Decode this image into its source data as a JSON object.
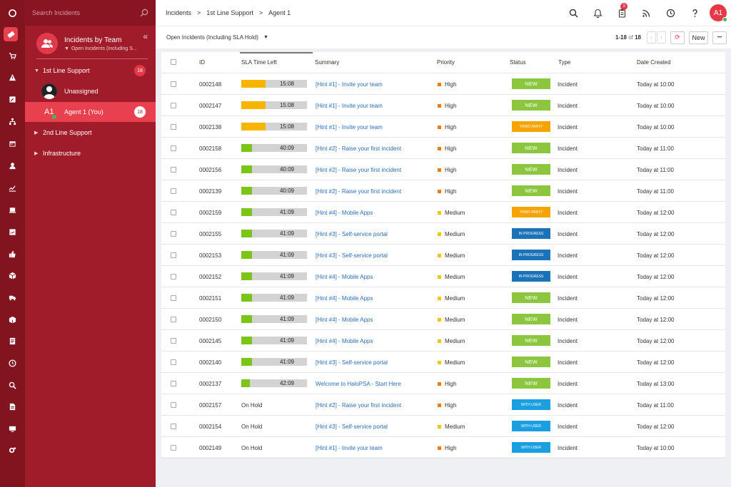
{
  "sidebar": {
    "search_placeholder": "Search Incidents",
    "team_title": "Incidents by Team",
    "team_filter": "Open Incidents (Including S...",
    "groups": [
      {
        "label": "1st Line Support",
        "count": "18"
      },
      {
        "label": "2nd Line Support",
        "count": ""
      },
      {
        "label": "Infrastructure",
        "count": ""
      }
    ],
    "unassigned_label": "Unassigned",
    "agent_label": "Agent 1 (You)",
    "agent_initials": "A1",
    "agent_count": "18"
  },
  "breadcrumb": [
    "Incidents",
    ">",
    "1st Line Support",
    ">",
    "Agent 1"
  ],
  "topbar": {
    "notification_count": "3",
    "user_initials": "A1"
  },
  "toolbar": {
    "filter_label": "Open Incidents (Including SLA Hold)",
    "pager_range": "1-18",
    "pager_of": "of",
    "pager_total": "18",
    "new_label": "New",
    "more_label": "•••"
  },
  "columns": {
    "id": "ID",
    "sla": "SLA Time Left",
    "summary": "Summary",
    "priority": "Priority",
    "status": "Status",
    "type": "Type",
    "date": "Date Created"
  },
  "colors": {
    "brand": "#a01c2a",
    "priority_high": "#f07d00",
    "priority_medium": "#f3c700",
    "sla_orange": "#f7b500",
    "sla_green": "#7cc417",
    "status_new": "#8cc63f",
    "status_third_party": "#f7a400",
    "status_in_progress": "#1a72b8",
    "status_with_user": "#1aa0e0"
  },
  "rows": [
    {
      "id": "0002148",
      "sla": "15:08",
      "sla_pct": 0.37,
      "sla_color": "orange",
      "summary": "[Hint #1] - Invite your team",
      "priority": "High",
      "status": "NEW",
      "type": "Incident",
      "date": "Today at 10:00"
    },
    {
      "id": "0002147",
      "sla": "15:08",
      "sla_pct": 0.37,
      "sla_color": "orange",
      "summary": "[Hint #1] - Invite your team",
      "priority": "High",
      "status": "NEW",
      "type": "Incident",
      "date": "Today at 10:00"
    },
    {
      "id": "0002138",
      "sla": "15:08",
      "sla_pct": 0.37,
      "sla_color": "orange",
      "summary": "[Hint #1] - Invite your team",
      "priority": "High",
      "status": "THIRD PARTY",
      "type": "Incident",
      "date": "Today at 10:00"
    },
    {
      "id": "0002158",
      "sla": "40:09",
      "sla_pct": 0.16,
      "sla_color": "green",
      "summary": "[Hint #2] - Raise your first incident",
      "priority": "High",
      "status": "NEW",
      "type": "Incident",
      "date": "Today at 11:00"
    },
    {
      "id": "0002156",
      "sla": "40:09",
      "sla_pct": 0.16,
      "sla_color": "green",
      "summary": "[Hint #2] - Raise your first incident",
      "priority": "High",
      "status": "NEW",
      "type": "Incident",
      "date": "Today at 11:00"
    },
    {
      "id": "0002139",
      "sla": "40:09",
      "sla_pct": 0.16,
      "sla_color": "green",
      "summary": "[Hint #2] - Raise your first incident",
      "priority": "High",
      "status": "NEW",
      "type": "Incident",
      "date": "Today at 11:00"
    },
    {
      "id": "0002159",
      "sla": "41:09",
      "sla_pct": 0.16,
      "sla_color": "green",
      "summary": "[Hint #4] - Mobile Apps",
      "priority": "Medium",
      "status": "THIRD PARTY",
      "type": "Incident",
      "date": "Today at 12:00"
    },
    {
      "id": "0002155",
      "sla": "41:09",
      "sla_pct": 0.16,
      "sla_color": "green",
      "summary": "[Hint #3] - Self-service portal",
      "priority": "Medium",
      "status": "IN PROGRESS",
      "type": "Incident",
      "date": "Today at 12:00"
    },
    {
      "id": "0002153",
      "sla": "41:09",
      "sla_pct": 0.16,
      "sla_color": "green",
      "summary": "[Hint #3] - Self-service portal",
      "priority": "Medium",
      "status": "IN PROGRESS",
      "type": "Incident",
      "date": "Today at 12:00"
    },
    {
      "id": "0002152",
      "sla": "41:09",
      "sla_pct": 0.16,
      "sla_color": "green",
      "summary": "[Hint #4] - Mobile Apps",
      "priority": "Medium",
      "status": "IN PROGRESS",
      "type": "Incident",
      "date": "Today at 12:00"
    },
    {
      "id": "0002151",
      "sla": "41:09",
      "sla_pct": 0.16,
      "sla_color": "green",
      "summary": "[Hint #4] - Mobile Apps",
      "priority": "Medium",
      "status": "NEW",
      "type": "Incident",
      "date": "Today at 12:00"
    },
    {
      "id": "0002150",
      "sla": "41:09",
      "sla_pct": 0.16,
      "sla_color": "green",
      "summary": "[Hint #4] - Mobile Apps",
      "priority": "Medium",
      "status": "NEW",
      "type": "Incident",
      "date": "Today at 12:00"
    },
    {
      "id": "0002145",
      "sla": "41:09",
      "sla_pct": 0.16,
      "sla_color": "green",
      "summary": "[Hint #4] - Mobile Apps",
      "priority": "Medium",
      "status": "NEW",
      "type": "Incident",
      "date": "Today at 12:00"
    },
    {
      "id": "0002140",
      "sla": "41:09",
      "sla_pct": 0.16,
      "sla_color": "green",
      "summary": "[Hint #3] - Self-service portal",
      "priority": "Medium",
      "status": "NEW",
      "type": "Incident",
      "date": "Today at 12:00"
    },
    {
      "id": "0002137",
      "sla": "42:09",
      "sla_pct": 0.13,
      "sla_color": "green",
      "summary": "Welcome to HaloPSA - Start Here",
      "priority": "High",
      "status": "NEW",
      "type": "Incident",
      "date": "Today at 13:00"
    },
    {
      "id": "0002157",
      "sla": "On Hold",
      "sla_pct": null,
      "sla_color": "",
      "summary": "[Hint #2] - Raise your first incident",
      "priority": "High",
      "status": "WITH USER",
      "type": "Incident",
      "date": "Today at 11:00"
    },
    {
      "id": "0002154",
      "sla": "On Hold",
      "sla_pct": null,
      "sla_color": "",
      "summary": "[Hint #3] - Self-service portal",
      "priority": "Medium",
      "status": "WITH USER",
      "type": "Incident",
      "date": "Today at 12:00"
    },
    {
      "id": "0002149",
      "sla": "On Hold",
      "sla_pct": null,
      "sla_color": "",
      "summary": "[Hint #1] - Invite your team",
      "priority": "High",
      "status": "WITH USER",
      "type": "Incident",
      "date": "Today at 10:00"
    }
  ],
  "rail_icons": [
    "logo-icon",
    "ticket-icon",
    "cart-icon",
    "warning-icon",
    "edit-icon",
    "org-chart-icon",
    "calendar-icon",
    "user-icon",
    "chart-icon",
    "laptop-icon",
    "sign-icon",
    "thumbs-up-icon",
    "box-icon",
    "truck-icon",
    "package-icon",
    "document-icon",
    "clock-icon",
    "search-icon",
    "file-icon",
    "monitor-icon",
    "settings-icon"
  ]
}
